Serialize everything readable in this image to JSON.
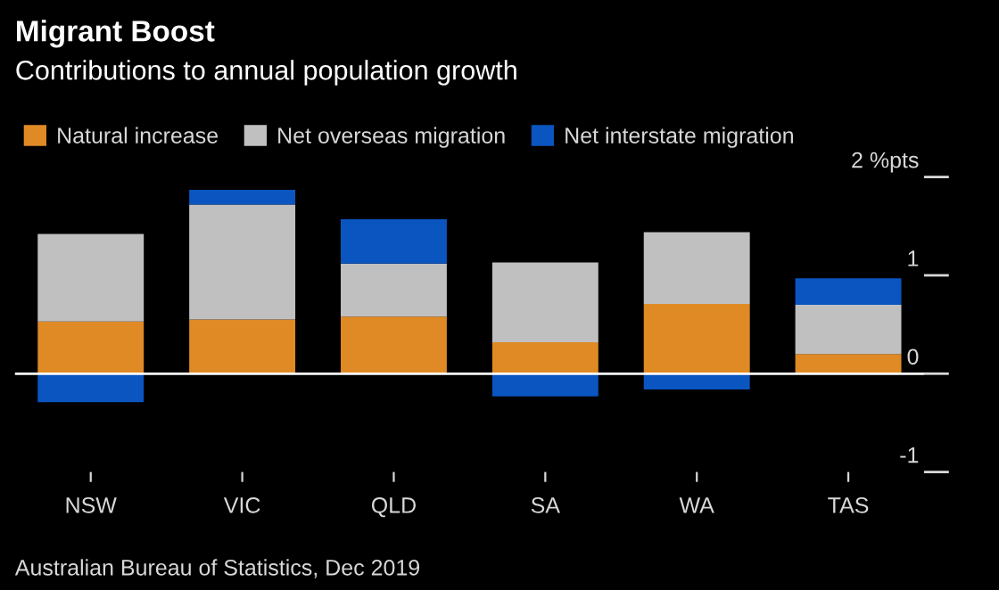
{
  "chart_data": {
    "type": "bar",
    "title": "Migrant Boost",
    "subtitle": "Contributions to annual population growth",
    "categories": [
      "NSW",
      "VIC",
      "QLD",
      "SA",
      "WA",
      "TAS"
    ],
    "stacked": true,
    "series": [
      {
        "name": "Natural increase",
        "color": "#e08a25",
        "values": [
          0.53,
          0.55,
          0.58,
          0.32,
          0.71,
          0.2
        ]
      },
      {
        "name": "Net overseas migration",
        "color": "#c0c0c0",
        "values": [
          0.89,
          1.17,
          0.54,
          0.81,
          0.73,
          0.5
        ]
      },
      {
        "name": "Net interstate migration",
        "color": "#0a55c0",
        "values": [
          -0.29,
          0.15,
          0.45,
          -0.23,
          -0.16,
          0.27
        ]
      }
    ],
    "ylim": [
      -1,
      2
    ],
    "yticks": [
      {
        "value": 2,
        "label": "2 %pts"
      },
      1,
      0,
      -1
    ],
    "ref_lines": [
      {
        "axis": "y",
        "value": 0,
        "color": "#ffffff"
      }
    ],
    "grid": false,
    "legend": "top left",
    "annotations": [
      "Australian Bureau of Statistics, Dec 2019"
    ]
  }
}
